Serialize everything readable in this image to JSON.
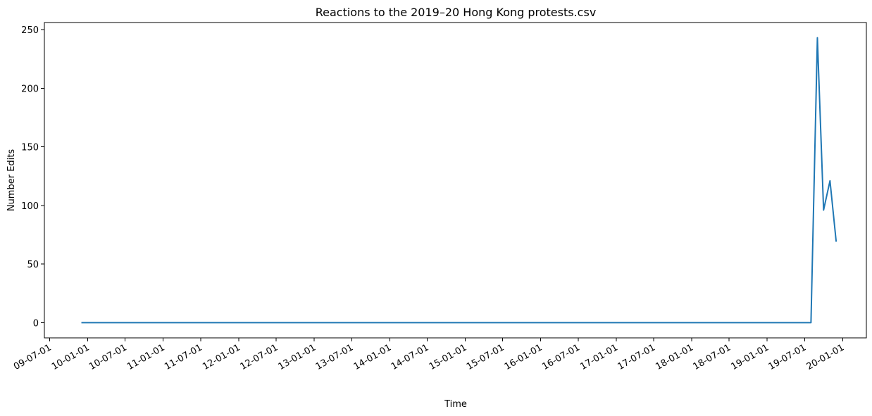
{
  "chart_data": {
    "type": "line",
    "title": "Reactions to the 2019–20 Hong Kong protests.csv",
    "xlabel": "Time",
    "ylabel": "Number Edits",
    "xlim": [
      "2009-06-05",
      "2020-04-25"
    ],
    "ylim": [
      -13,
      256
    ],
    "x_ticks": [
      {
        "date": "2009-07-01",
        "label": "09-07-01"
      },
      {
        "date": "2010-01-01",
        "label": "10-01-01"
      },
      {
        "date": "2010-07-01",
        "label": "10-07-01"
      },
      {
        "date": "2011-01-01",
        "label": "11-01-01"
      },
      {
        "date": "2011-07-01",
        "label": "11-07-01"
      },
      {
        "date": "2012-01-01",
        "label": "12-01-01"
      },
      {
        "date": "2012-07-01",
        "label": "12-07-01"
      },
      {
        "date": "2013-01-01",
        "label": "13-01-01"
      },
      {
        "date": "2013-07-01",
        "label": "13-07-01"
      },
      {
        "date": "2014-01-01",
        "label": "14-01-01"
      },
      {
        "date": "2014-07-01",
        "label": "14-07-01"
      },
      {
        "date": "2015-01-01",
        "label": "15-01-01"
      },
      {
        "date": "2015-07-01",
        "label": "15-07-01"
      },
      {
        "date": "2016-01-01",
        "label": "16-01-01"
      },
      {
        "date": "2016-07-01",
        "label": "16-07-01"
      },
      {
        "date": "2017-01-01",
        "label": "17-01-01"
      },
      {
        "date": "2017-07-01",
        "label": "17-07-01"
      },
      {
        "date": "2018-01-01",
        "label": "18-01-01"
      },
      {
        "date": "2018-07-01",
        "label": "18-07-01"
      },
      {
        "date": "2019-01-01",
        "label": "19-01-01"
      },
      {
        "date": "2019-07-01",
        "label": "19-07-01"
      },
      {
        "date": "2020-01-01",
        "label": "20-01-01"
      }
    ],
    "y_ticks": [
      0,
      50,
      100,
      150,
      200,
      250
    ],
    "grid": false,
    "series": [
      {
        "color": "#1f77b4",
        "points": [
          {
            "x": "2009-12-01",
            "y": 0
          },
          {
            "x": "2019-08-01",
            "y": 0
          },
          {
            "x": "2019-09-01",
            "y": 243
          },
          {
            "x": "2019-10-01",
            "y": 96
          },
          {
            "x": "2019-11-01",
            "y": 121
          },
          {
            "x": "2019-12-01",
            "y": 69
          }
        ]
      }
    ]
  }
}
